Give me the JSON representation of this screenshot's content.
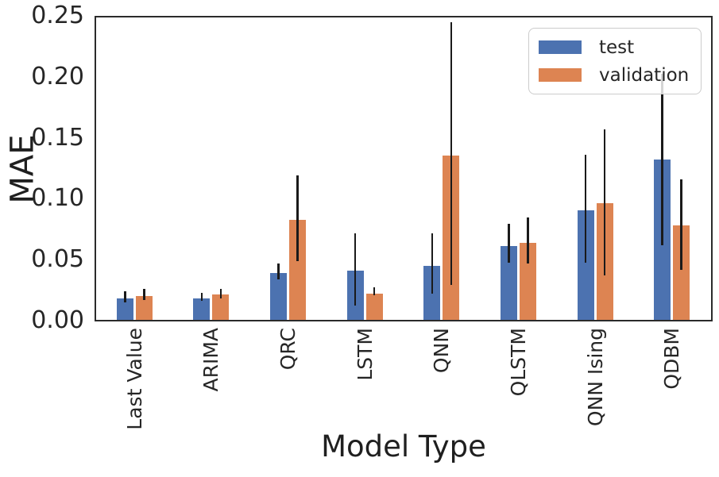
{
  "chart_data": {
    "type": "bar",
    "title": "",
    "xlabel": "Model Type",
    "ylabel": "MAE",
    "ylim": [
      0,
      0.25
    ],
    "yticks": [
      0.0,
      0.05,
      0.1,
      0.15,
      0.2,
      0.25
    ],
    "grid": false,
    "legend_position": "upper right",
    "error_bar_style": "vertical line, no caps, black",
    "categories": [
      "Last Value",
      "ARIMA",
      "QRC",
      "LSTM",
      "QNN",
      "QLSTM",
      "QNN Ising",
      "QDBM"
    ],
    "series": [
      {
        "name": "test",
        "color": "#4C72B0",
        "values": [
          0.018,
          0.018,
          0.039,
          0.041,
          0.045,
          0.061,
          0.091,
          0.133
        ],
        "error_low": [
          0.014,
          0.015,
          0.033,
          0.011,
          0.021,
          0.047,
          0.047,
          0.061
        ],
        "error_high": [
          0.023,
          0.022,
          0.046,
          0.071,
          0.071,
          0.079,
          0.136,
          0.203
        ]
      },
      {
        "name": "validation",
        "color": "#DD8452",
        "values": [
          0.02,
          0.021,
          0.083,
          0.022,
          0.136,
          0.064,
          0.097,
          0.078
        ],
        "error_low": [
          0.016,
          0.017,
          0.048,
          0.02,
          0.028,
          0.046,
          0.036,
          0.041
        ],
        "error_high": [
          0.025,
          0.025,
          0.119,
          0.026,
          0.246,
          0.084,
          0.157,
          0.116
        ]
      }
    ],
    "colors": {
      "spine": "#2b2b2b",
      "error_bar": "#1a1a1a",
      "text": "#262626"
    }
  }
}
